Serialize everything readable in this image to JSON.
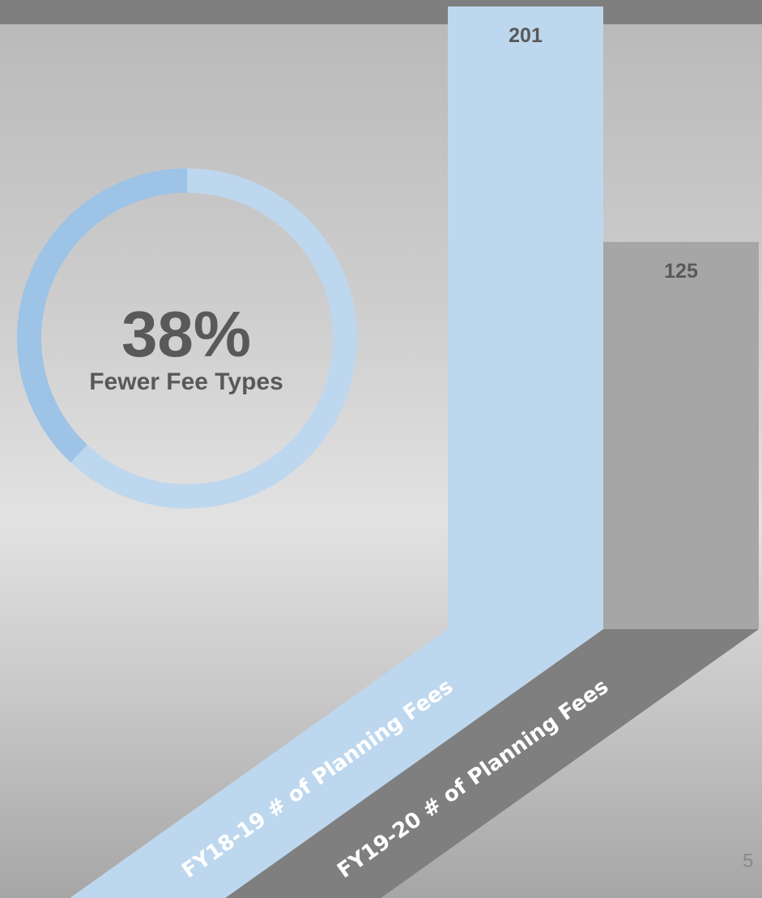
{
  "chart_data": {
    "type": "bar",
    "categories": [
      "FY18-19 # of Planning Fees",
      "FY19-20 # of Planning Fees"
    ],
    "values": [
      201,
      125
    ],
    "colors": [
      "#bdd7ee",
      "#a6a6a6"
    ],
    "floor_colors": [
      "#bdd7ee",
      "#7f7f7f"
    ],
    "ylim": [
      0,
      201
    ],
    "grid": false
  },
  "donut": {
    "percent_value": 38,
    "percent_label": "38%",
    "caption": "Fewer Fee Types",
    "highlight_color": "#9dc3e6",
    "base_color": "#bdd7ee"
  },
  "page_number": "5"
}
